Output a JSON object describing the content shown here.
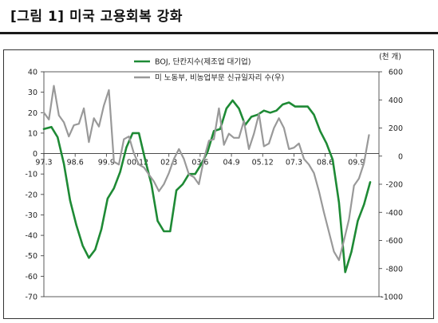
{
  "figure": {
    "title": "[그림 1] 미국 고용회복 강화"
  },
  "chart_data": {
    "type": "line",
    "x_tick_labels": [
      "97.3",
      "98.6",
      "99.9",
      "00.12",
      "02.3",
      "03.6",
      "04.9",
      "05.12",
      "07.3",
      "08.6",
      "09.9"
    ],
    "left_axis": {
      "range": [
        -70,
        40
      ],
      "ticks": [
        40,
        30,
        20,
        10,
        0,
        -10,
        -20,
        -30,
        -40,
        -50,
        -60,
        -70
      ]
    },
    "right_axis": {
      "unit": "(천 개)",
      "range": [
        -1000,
        600
      ],
      "ticks": [
        600,
        400,
        200,
        0,
        -200,
        -400,
        -600,
        -800,
        -1000
      ]
    },
    "legend": {
      "placement": "top-center"
    },
    "series": [
      {
        "name": "BOJ, 단칸지수(제조업 대기업)",
        "axis": "left",
        "color": "#1e8a35",
        "points": [
          [
            1997.2,
            12
          ],
          [
            1997.5,
            13
          ],
          [
            1997.75,
            8
          ],
          [
            1998.0,
            -5
          ],
          [
            1998.25,
            -23
          ],
          [
            1998.5,
            -35
          ],
          [
            1998.75,
            -45
          ],
          [
            1999.0,
            -51
          ],
          [
            1999.25,
            -47
          ],
          [
            1999.5,
            -37
          ],
          [
            1999.75,
            -22
          ],
          [
            2000.0,
            -17
          ],
          [
            2000.25,
            -9
          ],
          [
            2000.5,
            3
          ],
          [
            2000.75,
            10
          ],
          [
            2001.0,
            10
          ],
          [
            2001.25,
            -3
          ],
          [
            2001.5,
            -15
          ],
          [
            2001.75,
            -33
          ],
          [
            2002.0,
            -38
          ],
          [
            2002.25,
            -38
          ],
          [
            2002.5,
            -18
          ],
          [
            2002.75,
            -15
          ],
          [
            2003.0,
            -10
          ],
          [
            2003.25,
            -10
          ],
          [
            2003.5,
            -5
          ],
          [
            2003.75,
            1
          ],
          [
            2004.0,
            11
          ],
          [
            2004.25,
            12
          ],
          [
            2004.5,
            22
          ],
          [
            2004.75,
            26
          ],
          [
            2005.0,
            22
          ],
          [
            2005.25,
            14
          ],
          [
            2005.5,
            18
          ],
          [
            2005.75,
            19
          ],
          [
            2006.0,
            21
          ],
          [
            2006.25,
            20
          ],
          [
            2006.5,
            21
          ],
          [
            2006.75,
            24
          ],
          [
            2007.0,
            25
          ],
          [
            2007.25,
            23
          ],
          [
            2007.5,
            23
          ],
          [
            2007.75,
            23
          ],
          [
            2008.0,
            19
          ],
          [
            2008.25,
            11
          ],
          [
            2008.5,
            5
          ],
          [
            2008.75,
            -3
          ],
          [
            2009.0,
            -24
          ],
          [
            2009.25,
            -58
          ],
          [
            2009.5,
            -48
          ],
          [
            2009.75,
            -33
          ],
          [
            2010.0,
            -25
          ],
          [
            2010.25,
            -14
          ]
        ]
      },
      {
        "name": "미 노동부, 비농업부문 신규일자리 수(우)",
        "axis": "right",
        "color": "#999999",
        "points": [
          [
            1997.2,
            310
          ],
          [
            1997.4,
            260
          ],
          [
            1997.6,
            500
          ],
          [
            1997.8,
            290
          ],
          [
            1998.0,
            240
          ],
          [
            1998.2,
            140
          ],
          [
            1998.4,
            220
          ],
          [
            1998.6,
            230
          ],
          [
            1998.8,
            340
          ],
          [
            1999.0,
            100
          ],
          [
            1999.2,
            270
          ],
          [
            1999.4,
            210
          ],
          [
            1999.6,
            360
          ],
          [
            1999.8,
            470
          ],
          [
            2000.0,
            -40
          ],
          [
            2000.2,
            -60
          ],
          [
            2000.4,
            120
          ],
          [
            2000.6,
            140
          ],
          [
            2000.8,
            20
          ],
          [
            2001.0,
            -60
          ],
          [
            2001.2,
            -80
          ],
          [
            2001.4,
            -130
          ],
          [
            2001.6,
            -180
          ],
          [
            2001.8,
            -250
          ],
          [
            2002.0,
            -200
          ],
          [
            2002.2,
            -120
          ],
          [
            2002.4,
            -20
          ],
          [
            2002.6,
            50
          ],
          [
            2002.8,
            -20
          ],
          [
            2003.0,
            -130
          ],
          [
            2003.2,
            -150
          ],
          [
            2003.4,
            -200
          ],
          [
            2003.6,
            -20
          ],
          [
            2003.8,
            110
          ],
          [
            2004.0,
            120
          ],
          [
            2004.2,
            340
          ],
          [
            2004.4,
            80
          ],
          [
            2004.6,
            160
          ],
          [
            2004.8,
            130
          ],
          [
            2005.0,
            130
          ],
          [
            2005.2,
            250
          ],
          [
            2005.4,
            50
          ],
          [
            2005.6,
            160
          ],
          [
            2005.8,
            300
          ],
          [
            2006.0,
            70
          ],
          [
            2006.2,
            90
          ],
          [
            2006.4,
            200
          ],
          [
            2006.6,
            270
          ],
          [
            2006.8,
            200
          ],
          [
            2007.0,
            50
          ],
          [
            2007.2,
            60
          ],
          [
            2007.4,
            90
          ],
          [
            2007.6,
            -20
          ],
          [
            2007.8,
            -60
          ],
          [
            2008.0,
            -120
          ],
          [
            2008.2,
            -250
          ],
          [
            2008.4,
            -400
          ],
          [
            2008.6,
            -540
          ],
          [
            2008.8,
            -680
          ],
          [
            2009.0,
            -740
          ],
          [
            2009.2,
            -600
          ],
          [
            2009.4,
            -450
          ],
          [
            2009.6,
            -210
          ],
          [
            2009.8,
            -160
          ],
          [
            2010.0,
            -50
          ],
          [
            2010.2,
            150
          ]
        ]
      }
    ]
  }
}
